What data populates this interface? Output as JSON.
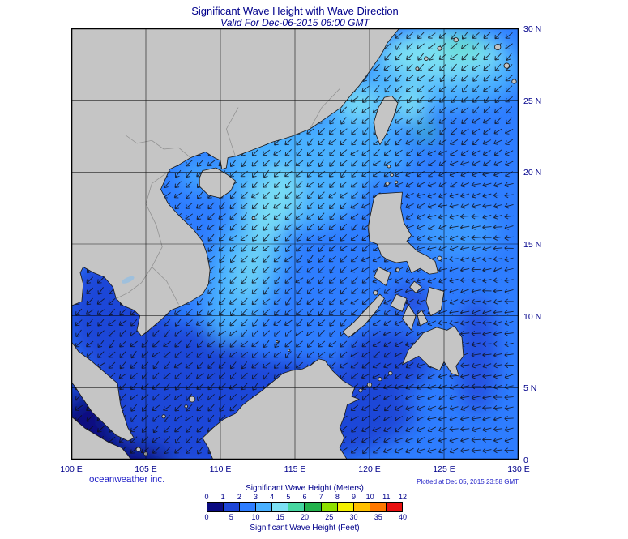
{
  "header": {
    "title": "Significant Wave Height with Wave Direction",
    "subtitle": "Valid For Dec-06-2015 06:00 GMT"
  },
  "map": {
    "x_ticks": [
      "100 E",
      "105 E",
      "110 E",
      "115 E",
      "120 E",
      "125 E",
      "130 E"
    ],
    "y_ticks": [
      "30 N",
      "25 N",
      "20 N",
      "15 N",
      "10 N",
      "5 N",
      "0"
    ]
  },
  "footer": {
    "branding": "oceanweather inc.",
    "plotted_at": "Plotted at Dec 05, 2015 23:58 GMT"
  },
  "legend": {
    "meters_label": "Significant Wave Height (Meters)",
    "feet_label": "Significant Wave Height (Feet)",
    "meters_ticks": [
      "0",
      "1",
      "2",
      "3",
      "4",
      "5",
      "6",
      "7",
      "8",
      "9",
      "10",
      "11",
      "12"
    ],
    "feet_ticks": [
      "0",
      "5",
      "10",
      "15",
      "20",
      "25",
      "30",
      "35",
      "40"
    ],
    "colors": [
      "#0a0a80",
      "#1e46d8",
      "#2e7dff",
      "#49b0ff",
      "#7ce0f4",
      "#46d6a0",
      "#22b14c",
      "#8ee000",
      "#f4f000",
      "#ffc000",
      "#ff7800",
      "#e81010"
    ]
  },
  "chart_data": {
    "type": "heatmap",
    "title": "Significant Wave Height with Wave Direction",
    "valid_time": "Dec-06-2015 06:00 GMT",
    "plotted_time": "Dec 05, 2015 23:58 GMT",
    "x_axis": {
      "ticks": [
        "100 E",
        "105 E",
        "110 E",
        "115 E",
        "120 E",
        "125 E",
        "130 E"
      ],
      "range_deg_east": [
        100,
        130
      ]
    },
    "y_axis": {
      "ticks": [
        "30 N",
        "25 N",
        "20 N",
        "15 N",
        "10 N",
        "5 N",
        "0"
      ],
      "range_deg_north": [
        0,
        30
      ]
    },
    "colorbar": {
      "meters": [
        0,
        1,
        2,
        3,
        4,
        5,
        6,
        7,
        8,
        9,
        10,
        11,
        12
      ],
      "feet": [
        0,
        5,
        10,
        15,
        20,
        25,
        30,
        35,
        40
      ],
      "colors": [
        "#0a0a80",
        "#1e46d8",
        "#2e7dff",
        "#49b0ff",
        "#7ce0f4",
        "#46d6a0",
        "#22b14c",
        "#8ee000",
        "#f4f000",
        "#ffc000",
        "#ff7800",
        "#e81010"
      ]
    },
    "readings": [
      {
        "area": "Pacific northeast of Taiwan (24-29N, 122-128E)",
        "wave_height_m": "4-5",
        "direction": "toward SW"
      },
      {
        "area": "Taiwan Strait / Luzon Strait",
        "wave_height_m": "3-5",
        "direction": "toward SW"
      },
      {
        "area": "Central South China Sea off Vietnam (12-18N)",
        "wave_height_m": "3-4",
        "direction": "toward SW"
      },
      {
        "area": "Philippine Sea east of Luzon",
        "wave_height_m": "2-3",
        "direction": "toward W"
      },
      {
        "area": "Gulf of Thailand / southern South China Sea",
        "wave_height_m": "1-2",
        "direction": "toward SW"
      },
      {
        "area": "Malacca Strait / NE Sumatra coast",
        "wave_height_m": "0-1",
        "direction": "toward W"
      }
    ]
  }
}
